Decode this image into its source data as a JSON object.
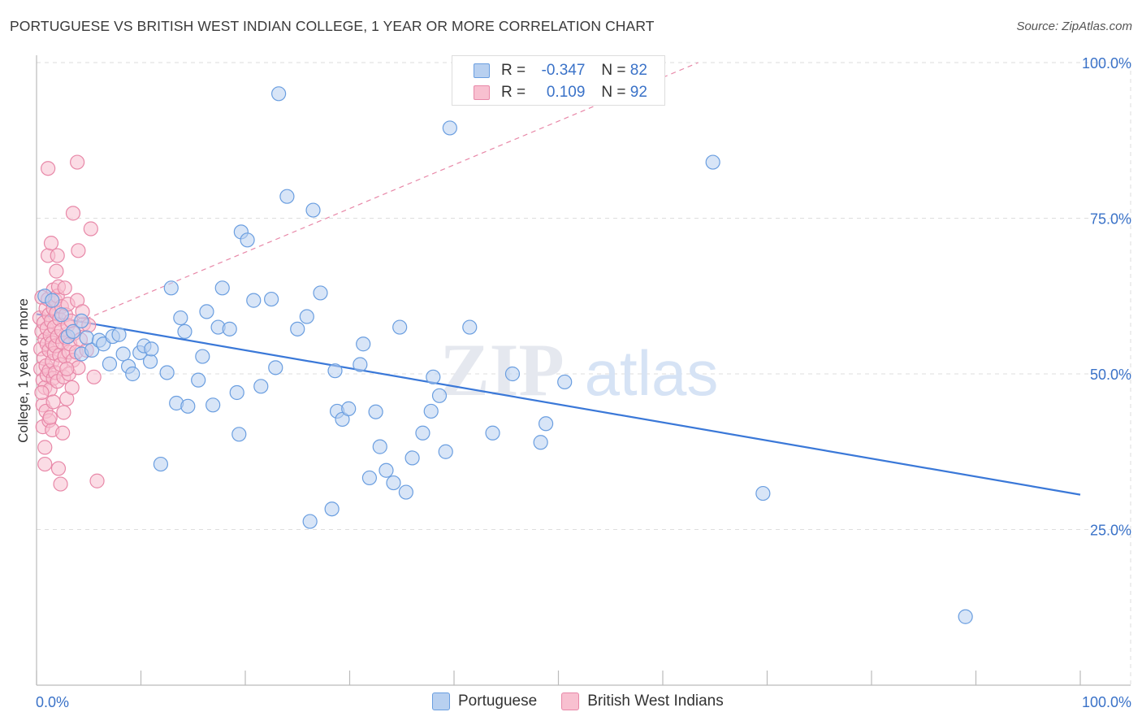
{
  "title": "PORTUGUESE VS BRITISH WEST INDIAN COLLEGE, 1 YEAR OR MORE CORRELATION CHART",
  "source": "Source: ZipAtlas.com",
  "watermark": {
    "part1": "ZIP",
    "part2": "atlas"
  },
  "legend": {
    "r_label": "R =",
    "n_label": "N =",
    "rows": [
      {
        "name": "Portuguese",
        "r": "-0.347",
        "n": "82",
        "fill": "#b8d0f0",
        "stroke": "#6a9ee0"
      },
      {
        "name": "British West Indians",
        "r": "0.109",
        "n": "92",
        "fill": "#f8c0d0",
        "stroke": "#e888a8"
      }
    ]
  },
  "chart_data": {
    "type": "scatter",
    "title": "PORTUGUESE VS BRITISH WEST INDIAN COLLEGE, 1 YEAR OR MORE CORRELATION CHART",
    "xlabel": "",
    "ylabel": "College, 1 year or more",
    "xlim": [
      0,
      100
    ],
    "ylim": [
      0,
      105
    ],
    "x_tick_labels": [
      "0.0%",
      "100.0%"
    ],
    "y_ticks": [
      25,
      50,
      75,
      100
    ],
    "y_tick_labels": [
      "25.0%",
      "50.0%",
      "75.0%",
      "100.0%"
    ],
    "grid": true,
    "legend_position": "top-center",
    "series": [
      {
        "name": "Portuguese",
        "color": "#6a9ee0",
        "fill": "#b8d0f0",
        "trend": {
          "x": [
            0,
            100
          ],
          "y": [
            59.6,
            30.6
          ],
          "style": "solid",
          "color": "#3a78d8"
        },
        "points": [
          [
            0.8,
            62.5
          ],
          [
            1.5,
            61.8
          ],
          [
            2.4,
            59.5
          ],
          [
            3.0,
            56.0
          ],
          [
            3.5,
            56.8
          ],
          [
            4.3,
            53.2
          ],
          [
            4.3,
            58.5
          ],
          [
            4.8,
            55.8
          ],
          [
            5.3,
            53.8
          ],
          [
            6.0,
            55.4
          ],
          [
            6.4,
            54.8
          ],
          [
            7.0,
            51.6
          ],
          [
            7.3,
            56.0
          ],
          [
            7.9,
            56.3
          ],
          [
            8.3,
            53.2
          ],
          [
            8.8,
            51.2
          ],
          [
            9.2,
            50.0
          ],
          [
            9.9,
            53.4
          ],
          [
            10.3,
            54.5
          ],
          [
            10.9,
            52.0
          ],
          [
            11.0,
            54.0
          ],
          [
            11.9,
            35.5
          ],
          [
            12.5,
            50.2
          ],
          [
            12.9,
            63.8
          ],
          [
            13.4,
            45.3
          ],
          [
            13.8,
            59.0
          ],
          [
            14.2,
            56.8
          ],
          [
            14.5,
            44.8
          ],
          [
            15.5,
            49.0
          ],
          [
            15.9,
            52.8
          ],
          [
            16.3,
            60.0
          ],
          [
            16.9,
            45.0
          ],
          [
            17.4,
            57.5
          ],
          [
            17.8,
            63.8
          ],
          [
            18.5,
            57.2
          ],
          [
            19.2,
            47.0
          ],
          [
            19.4,
            40.3
          ],
          [
            19.6,
            72.8
          ],
          [
            20.2,
            71.5
          ],
          [
            20.8,
            61.8
          ],
          [
            21.5,
            48.0
          ],
          [
            22.5,
            62.0
          ],
          [
            22.9,
            51.0
          ],
          [
            23.2,
            95.0
          ],
          [
            24.0,
            78.5
          ],
          [
            25.0,
            57.2
          ],
          [
            25.9,
            59.2
          ],
          [
            26.5,
            76.3
          ],
          [
            26.2,
            26.3
          ],
          [
            27.2,
            63.0
          ],
          [
            28.3,
            28.3
          ],
          [
            28.6,
            50.5
          ],
          [
            28.8,
            44.0
          ],
          [
            29.3,
            42.7
          ],
          [
            29.9,
            44.4
          ],
          [
            31.0,
            51.5
          ],
          [
            31.3,
            54.8
          ],
          [
            31.9,
            33.3
          ],
          [
            32.5,
            43.9
          ],
          [
            32.9,
            38.3
          ],
          [
            33.5,
            34.5
          ],
          [
            34.2,
            32.5
          ],
          [
            34.8,
            57.5
          ],
          [
            35.4,
            31.0
          ],
          [
            36.0,
            36.5
          ],
          [
            37.0,
            40.5
          ],
          [
            37.8,
            44.0
          ],
          [
            38.0,
            49.5
          ],
          [
            38.6,
            46.5
          ],
          [
            39.2,
            37.5
          ],
          [
            39.6,
            89.5
          ],
          [
            41.5,
            57.5
          ],
          [
            43.7,
            40.5
          ],
          [
            45.6,
            50.0
          ],
          [
            48.3,
            39.0
          ],
          [
            48.8,
            42.0
          ],
          [
            50.6,
            48.7
          ],
          [
            64.8,
            84.0
          ],
          [
            69.6,
            30.8
          ],
          [
            89.0,
            11.0
          ]
        ]
      },
      {
        "name": "British West Indians",
        "color": "#e888a8",
        "fill": "#f8c0d0",
        "trend": {
          "x": [
            0,
            63.4
          ],
          "y": [
            55.5,
            100
          ],
          "style": "dashed",
          "color": "#e888a8"
        },
        "points": [
          [
            0.3,
            59.0
          ],
          [
            0.4,
            54.0
          ],
          [
            0.4,
            50.8
          ],
          [
            0.5,
            56.8
          ],
          [
            0.5,
            62.3
          ],
          [
            0.6,
            49.0
          ],
          [
            0.6,
            45.0
          ],
          [
            0.6,
            41.5
          ],
          [
            0.7,
            58.2
          ],
          [
            0.7,
            52.5
          ],
          [
            0.8,
            55.5
          ],
          [
            0.8,
            47.8
          ],
          [
            0.8,
            38.2
          ],
          [
            0.9,
            60.5
          ],
          [
            0.9,
            51.3
          ],
          [
            0.9,
            44.0
          ],
          [
            1.0,
            57.3
          ],
          [
            1.0,
            54.8
          ],
          [
            1.0,
            49.8
          ],
          [
            1.1,
            83.0
          ],
          [
            1.1,
            69.0
          ],
          [
            1.1,
            62.0
          ],
          [
            1.2,
            59.5
          ],
          [
            1.2,
            53.8
          ],
          [
            1.2,
            50.5
          ],
          [
            1.2,
            42.5
          ],
          [
            1.3,
            56.2
          ],
          [
            1.3,
            47.5
          ],
          [
            1.4,
            71.0
          ],
          [
            1.4,
            58.5
          ],
          [
            1.5,
            55.0
          ],
          [
            1.5,
            52.0
          ],
          [
            1.5,
            41.0
          ],
          [
            1.6,
            63.5
          ],
          [
            1.6,
            60.5
          ],
          [
            1.6,
            49.3
          ],
          [
            1.7,
            57.5
          ],
          [
            1.7,
            53.3
          ],
          [
            1.8,
            61.8
          ],
          [
            1.8,
            54.5
          ],
          [
            1.8,
            50.2
          ],
          [
            1.9,
            59.8
          ],
          [
            2.0,
            69.0
          ],
          [
            2.0,
            62.5
          ],
          [
            2.0,
            56.0
          ],
          [
            2.0,
            48.8
          ],
          [
            2.1,
            34.8
          ],
          [
            2.1,
            64.0
          ],
          [
            2.2,
            58.8
          ],
          [
            2.2,
            53.0
          ],
          [
            2.3,
            51.5
          ],
          [
            2.3,
            32.3
          ],
          [
            2.4,
            60.8
          ],
          [
            2.4,
            57.0
          ],
          [
            2.5,
            55.0
          ],
          [
            2.6,
            49.5
          ],
          [
            2.6,
            43.8
          ],
          [
            2.7,
            63.8
          ],
          [
            2.7,
            52.8
          ],
          [
            2.8,
            59.5
          ],
          [
            2.8,
            55.8
          ],
          [
            2.9,
            46.0
          ],
          [
            3.0,
            61.2
          ],
          [
            3.0,
            57.8
          ],
          [
            3.1,
            53.5
          ],
          [
            3.1,
            50.0
          ],
          [
            3.2,
            54.8
          ],
          [
            3.3,
            58.5
          ],
          [
            3.5,
            75.8
          ],
          [
            3.5,
            52.2
          ],
          [
            3.6,
            56.5
          ],
          [
            3.8,
            53.5
          ],
          [
            3.9,
            61.8
          ],
          [
            3.9,
            84.0
          ],
          [
            4.0,
            69.8
          ],
          [
            4.0,
            51.0
          ],
          [
            4.2,
            55.5
          ],
          [
            4.5,
            58.0
          ],
          [
            4.8,
            53.8
          ],
          [
            5.0,
            57.8
          ],
          [
            5.2,
            73.3
          ],
          [
            5.5,
            49.5
          ],
          [
            5.8,
            32.8
          ],
          [
            1.3,
            43.0
          ],
          [
            0.8,
            35.5
          ],
          [
            1.6,
            45.5
          ],
          [
            2.5,
            40.5
          ],
          [
            3.4,
            47.8
          ],
          [
            4.4,
            60.0
          ],
          [
            0.5,
            47.0
          ],
          [
            2.9,
            50.8
          ],
          [
            1.9,
            66.5
          ]
        ]
      }
    ]
  }
}
